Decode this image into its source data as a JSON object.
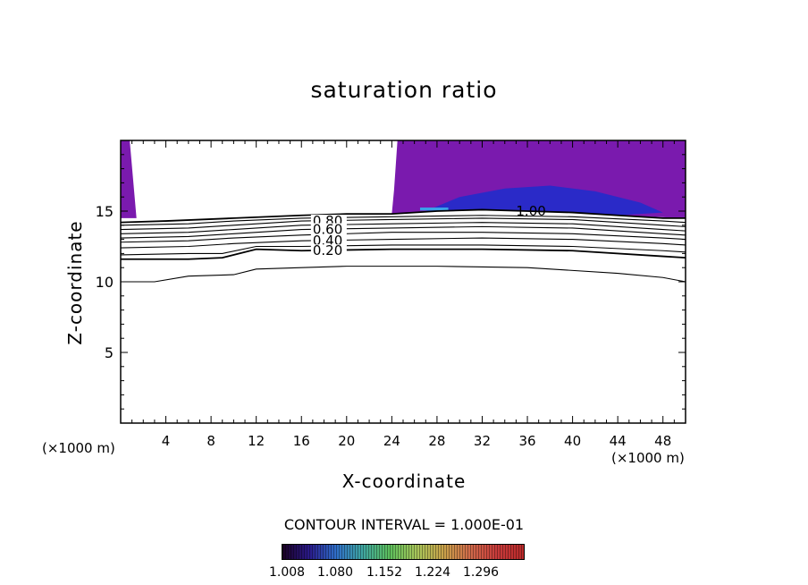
{
  "chart_data": {
    "type": "contour",
    "title": "saturation ratio",
    "xlabel": "X-coordinate",
    "ylabel": "Z-coordinate",
    "x_unit_label": "(×1000 m)",
    "y_unit_label": "(×1000 m)",
    "xlim": [
      0,
      50
    ],
    "ylim": [
      0,
      20
    ],
    "x_ticks": [
      4,
      8,
      12,
      16,
      20,
      24,
      28,
      32,
      36,
      40,
      44,
      48
    ],
    "y_ticks": [
      5,
      10,
      15
    ],
    "contour_interval_label": "CONTOUR INTERVAL = 1.000E-01",
    "contour_labels": [
      {
        "text": "1.00",
        "x": 35,
        "level": 1.0
      },
      {
        "text": "0.80",
        "x": 17,
        "level": 0.8
      },
      {
        "text": "0.60",
        "x": 17,
        "level": 0.6
      },
      {
        "text": "0.40",
        "x": 17,
        "level": 0.4
      },
      {
        "text": "0.20",
        "x": 17,
        "level": 0.2
      }
    ],
    "contours": [
      {
        "level": 1.0,
        "points": [
          [
            0,
            14.2
          ],
          [
            4,
            14.3
          ],
          [
            10,
            14.5
          ],
          [
            16,
            14.7
          ],
          [
            20,
            14.8
          ],
          [
            24,
            14.8
          ],
          [
            28,
            15.0
          ],
          [
            32,
            15.1
          ],
          [
            36,
            15.0
          ],
          [
            40,
            14.9
          ],
          [
            44,
            14.7
          ],
          [
            48,
            14.5
          ],
          [
            50,
            14.5
          ]
        ]
      },
      {
        "level": 0.9,
        "points": [
          [
            0,
            14.0
          ],
          [
            6,
            14.1
          ],
          [
            10,
            14.3
          ],
          [
            16,
            14.5
          ],
          [
            24,
            14.6
          ],
          [
            32,
            14.7
          ],
          [
            40,
            14.6
          ],
          [
            48,
            14.3
          ],
          [
            50,
            14.2
          ]
        ]
      },
      {
        "level": 0.8,
        "points": [
          [
            0,
            13.7
          ],
          [
            6,
            13.8
          ],
          [
            10,
            14.0
          ],
          [
            16,
            14.3
          ],
          [
            24,
            14.4
          ],
          [
            32,
            14.5
          ],
          [
            40,
            14.4
          ],
          [
            48,
            14.0
          ],
          [
            50,
            13.9
          ]
        ]
      },
      {
        "level": 0.7,
        "points": [
          [
            0,
            13.4
          ],
          [
            6,
            13.5
          ],
          [
            10,
            13.7
          ],
          [
            16,
            14.0
          ],
          [
            24,
            14.1
          ],
          [
            32,
            14.2
          ],
          [
            40,
            14.1
          ],
          [
            48,
            13.7
          ],
          [
            50,
            13.6
          ]
        ]
      },
      {
        "level": 0.6,
        "points": [
          [
            0,
            13.1
          ],
          [
            6,
            13.2
          ],
          [
            10,
            13.4
          ],
          [
            16,
            13.7
          ],
          [
            24,
            13.8
          ],
          [
            32,
            13.9
          ],
          [
            40,
            13.8
          ],
          [
            48,
            13.4
          ],
          [
            50,
            13.3
          ]
        ]
      },
      {
        "level": 0.5,
        "points": [
          [
            0,
            12.8
          ],
          [
            6,
            12.9
          ],
          [
            10,
            13.1
          ],
          [
            16,
            13.3
          ],
          [
            24,
            13.5
          ],
          [
            32,
            13.5
          ],
          [
            40,
            13.4
          ],
          [
            48,
            13.1
          ],
          [
            50,
            13.0
          ]
        ]
      },
      {
        "level": 0.4,
        "points": [
          [
            0,
            12.4
          ],
          [
            6,
            12.5
          ],
          [
            10,
            12.7
          ],
          [
            16,
            12.9
          ],
          [
            24,
            13.0
          ],
          [
            32,
            13.1
          ],
          [
            40,
            13.0
          ],
          [
            48,
            12.7
          ],
          [
            50,
            12.6
          ]
        ]
      },
      {
        "level": 0.3,
        "points": [
          [
            0,
            11.9
          ],
          [
            6,
            12.0
          ],
          [
            9,
            12.0
          ],
          [
            12,
            12.5
          ],
          [
            16,
            12.5
          ],
          [
            24,
            12.6
          ],
          [
            32,
            12.6
          ],
          [
            40,
            12.5
          ],
          [
            48,
            12.2
          ],
          [
            50,
            12.1
          ]
        ]
      },
      {
        "level": 0.2,
        "points": [
          [
            0,
            11.6
          ],
          [
            6,
            11.6
          ],
          [
            9,
            11.7
          ],
          [
            12,
            12.3
          ],
          [
            16,
            12.2
          ],
          [
            24,
            12.3
          ],
          [
            32,
            12.3
          ],
          [
            40,
            12.2
          ],
          [
            48,
            11.8
          ],
          [
            50,
            11.7
          ]
        ]
      },
      {
        "level": 0.1,
        "points": [
          [
            0,
            10.0
          ],
          [
            3,
            10.0
          ],
          [
            6,
            10.4
          ],
          [
            10,
            10.5
          ],
          [
            12,
            10.9
          ],
          [
            16,
            11.0
          ],
          [
            20,
            11.1
          ],
          [
            28,
            11.1
          ],
          [
            36,
            11.0
          ],
          [
            44,
            10.6
          ],
          [
            48,
            10.3
          ],
          [
            50,
            10.0
          ]
        ]
      }
    ],
    "filled_regions": [
      {
        "name": "supersaturated-left",
        "color": "#7a1aae",
        "points": [
          [
            0,
            20
          ],
          [
            0.8,
            20
          ],
          [
            1.4,
            14.5
          ],
          [
            0,
            14.5
          ]
        ]
      },
      {
        "name": "supersaturated-right",
        "color": "#7a1aae",
        "points": [
          [
            24.5,
            20
          ],
          [
            50,
            20
          ],
          [
            50,
            14.5
          ],
          [
            44,
            14.7
          ],
          [
            40,
            14.9
          ],
          [
            36,
            15.0
          ],
          [
            32,
            15.1
          ],
          [
            28,
            15.0
          ],
          [
            24,
            14.8
          ],
          [
            24.2,
            16.5
          ]
        ]
      },
      {
        "name": "core-blue",
        "color": "#2a2ac8",
        "points": [
          [
            27,
            15.0
          ],
          [
            30,
            16.0
          ],
          [
            34,
            16.6
          ],
          [
            38,
            16.8
          ],
          [
            42,
            16.4
          ],
          [
            46,
            15.6
          ],
          [
            48,
            14.9
          ],
          [
            44,
            14.7
          ],
          [
            40,
            14.9
          ],
          [
            36,
            15.0
          ],
          [
            32,
            15.1
          ]
        ]
      },
      {
        "name": "core-lightblue",
        "color": "#3aa0e8",
        "points": [
          [
            26.5,
            15.05
          ],
          [
            29,
            15.05
          ],
          [
            29,
            15.25
          ],
          [
            26.5,
            15.25
          ]
        ]
      }
    ],
    "colorbar": {
      "labels": [
        "1.008",
        "1.080",
        "1.152",
        "1.224",
        "1.296"
      ],
      "colors": [
        "#1a0022",
        "#2a1a8a",
        "#2f6ec8",
        "#3fa6a0",
        "#5cbf5c",
        "#a8c65a",
        "#c9a24a",
        "#d06a4a",
        "#c83a3a",
        "#b82a2a"
      ]
    }
  }
}
